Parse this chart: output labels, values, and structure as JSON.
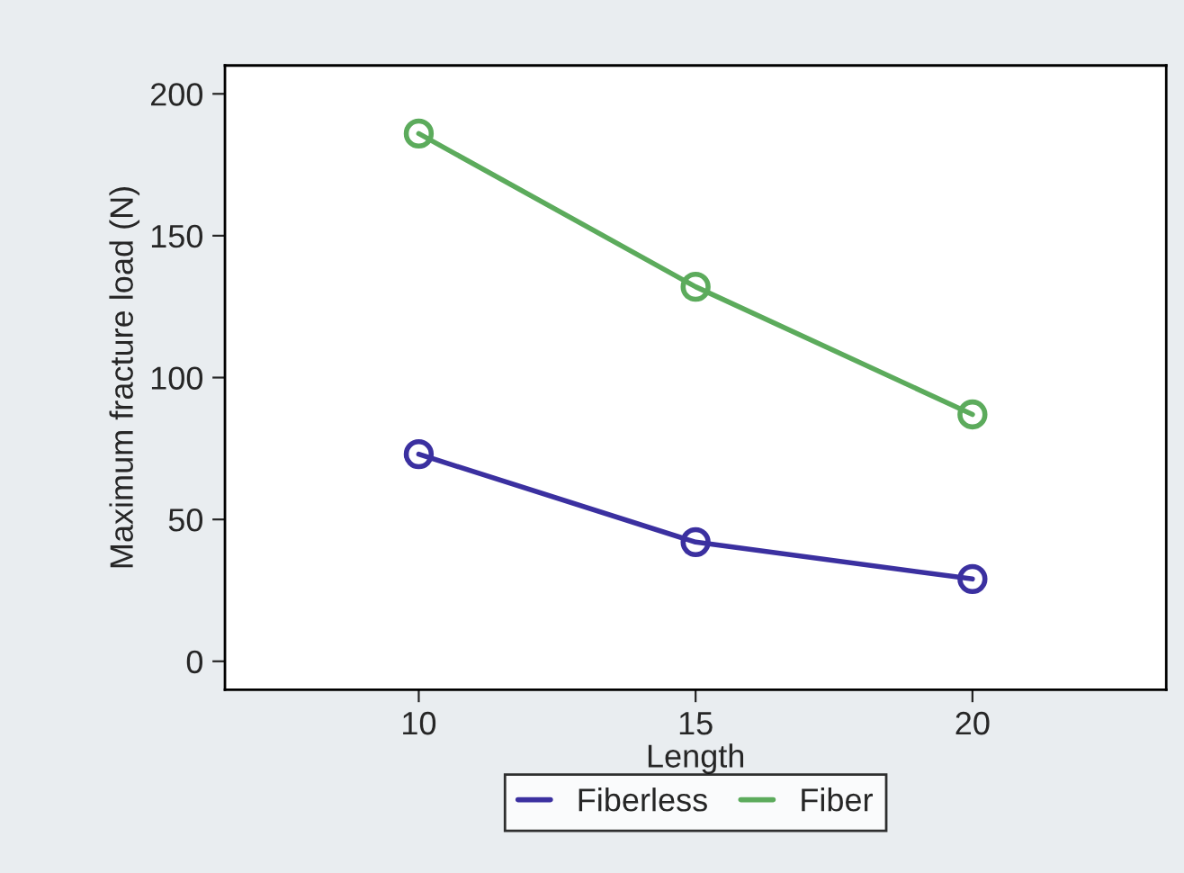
{
  "chart_data": {
    "type": "line",
    "xlabel": "Length",
    "ylabel": "Maximum fracture load (N)",
    "x": [
      10,
      15,
      20
    ],
    "series": [
      {
        "name": "Fiberless",
        "color": "#3b30a0",
        "values": [
          73,
          42,
          29
        ]
      },
      {
        "name": "Fiber",
        "color": "#5cab5c",
        "values": [
          186,
          132,
          87
        ]
      }
    ],
    "xlim": [
      6.5,
      23.5
    ],
    "xticks": [
      10,
      15,
      20
    ],
    "ylim": [
      -10,
      210
    ],
    "yticks": [
      0,
      50,
      100,
      150,
      200
    ],
    "marker": "circle",
    "line_style": "solid",
    "legend": "bottom",
    "grid": false
  }
}
